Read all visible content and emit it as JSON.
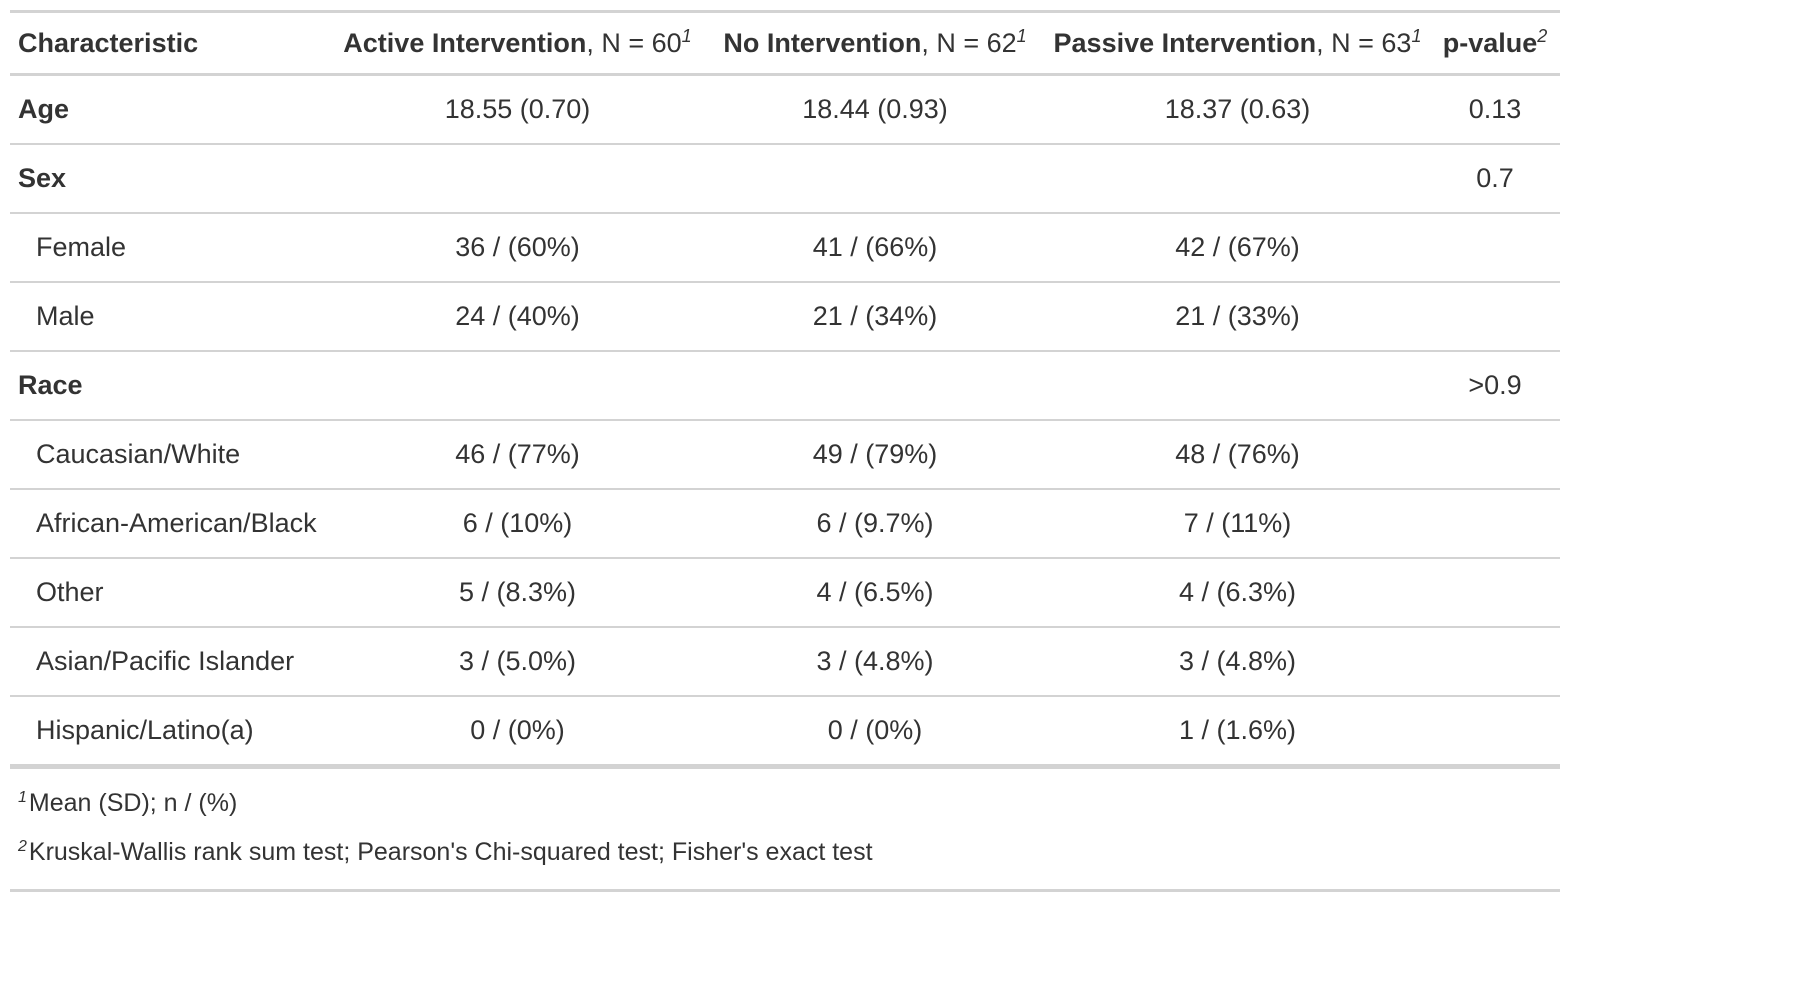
{
  "table": {
    "headers": {
      "characteristic": "Characteristic",
      "columns": [
        {
          "label": "Active Intervention",
          "n_text": ", N = 60",
          "sup": "1"
        },
        {
          "label": "No Intervention",
          "n_text": ", N = 62",
          "sup": "1"
        },
        {
          "label": "Passive Intervention",
          "n_text": ", N = 63",
          "sup": "1"
        }
      ],
      "pvalue": {
        "label": "p-value",
        "sup": "2"
      }
    },
    "rows": [
      {
        "type": "var",
        "label": "Age",
        "values": [
          "18.55 (0.70)",
          "18.44 (0.93)",
          "18.37 (0.63)"
        ],
        "p": "0.13"
      },
      {
        "type": "var",
        "label": "Sex",
        "values": [
          "",
          "",
          ""
        ],
        "p": "0.7"
      },
      {
        "type": "level",
        "label": "Female",
        "values": [
          "36 / (60%)",
          "41 / (66%)",
          "42 / (67%)"
        ],
        "p": ""
      },
      {
        "type": "level",
        "label": "Male",
        "values": [
          "24 / (40%)",
          "21 / (34%)",
          "21 / (33%)"
        ],
        "p": ""
      },
      {
        "type": "var",
        "label": "Race",
        "values": [
          "",
          "",
          ""
        ],
        "p": ">0.9"
      },
      {
        "type": "level",
        "label": "Caucasian/White",
        "values": [
          "46 / (77%)",
          "49 / (79%)",
          "48 / (76%)"
        ],
        "p": ""
      },
      {
        "type": "level",
        "label": "African-American/Black",
        "values": [
          "6 / (10%)",
          "6 / (9.7%)",
          "7 / (11%)"
        ],
        "p": ""
      },
      {
        "type": "level",
        "label": "Other",
        "values": [
          "5 / (8.3%)",
          "4 / (6.5%)",
          "4 / (6.3%)"
        ],
        "p": ""
      },
      {
        "type": "level",
        "label": "Asian/Pacific Islander",
        "values": [
          "3 / (5.0%)",
          "3 / (4.8%)",
          "3 / (4.8%)"
        ],
        "p": ""
      },
      {
        "type": "level",
        "label": "Hispanic/Latino(a)",
        "values": [
          "0 / (0%)",
          "0 / (0%)",
          "1 / (1.6%)"
        ],
        "p": ""
      }
    ]
  },
  "footnotes": [
    {
      "mark": "1",
      "text": "Mean (SD); n / (%)"
    },
    {
      "mark": "2",
      "text": "Kruskal-Wallis rank sum test; Pearson's Chi-squared test; Fisher's exact test"
    }
  ]
}
